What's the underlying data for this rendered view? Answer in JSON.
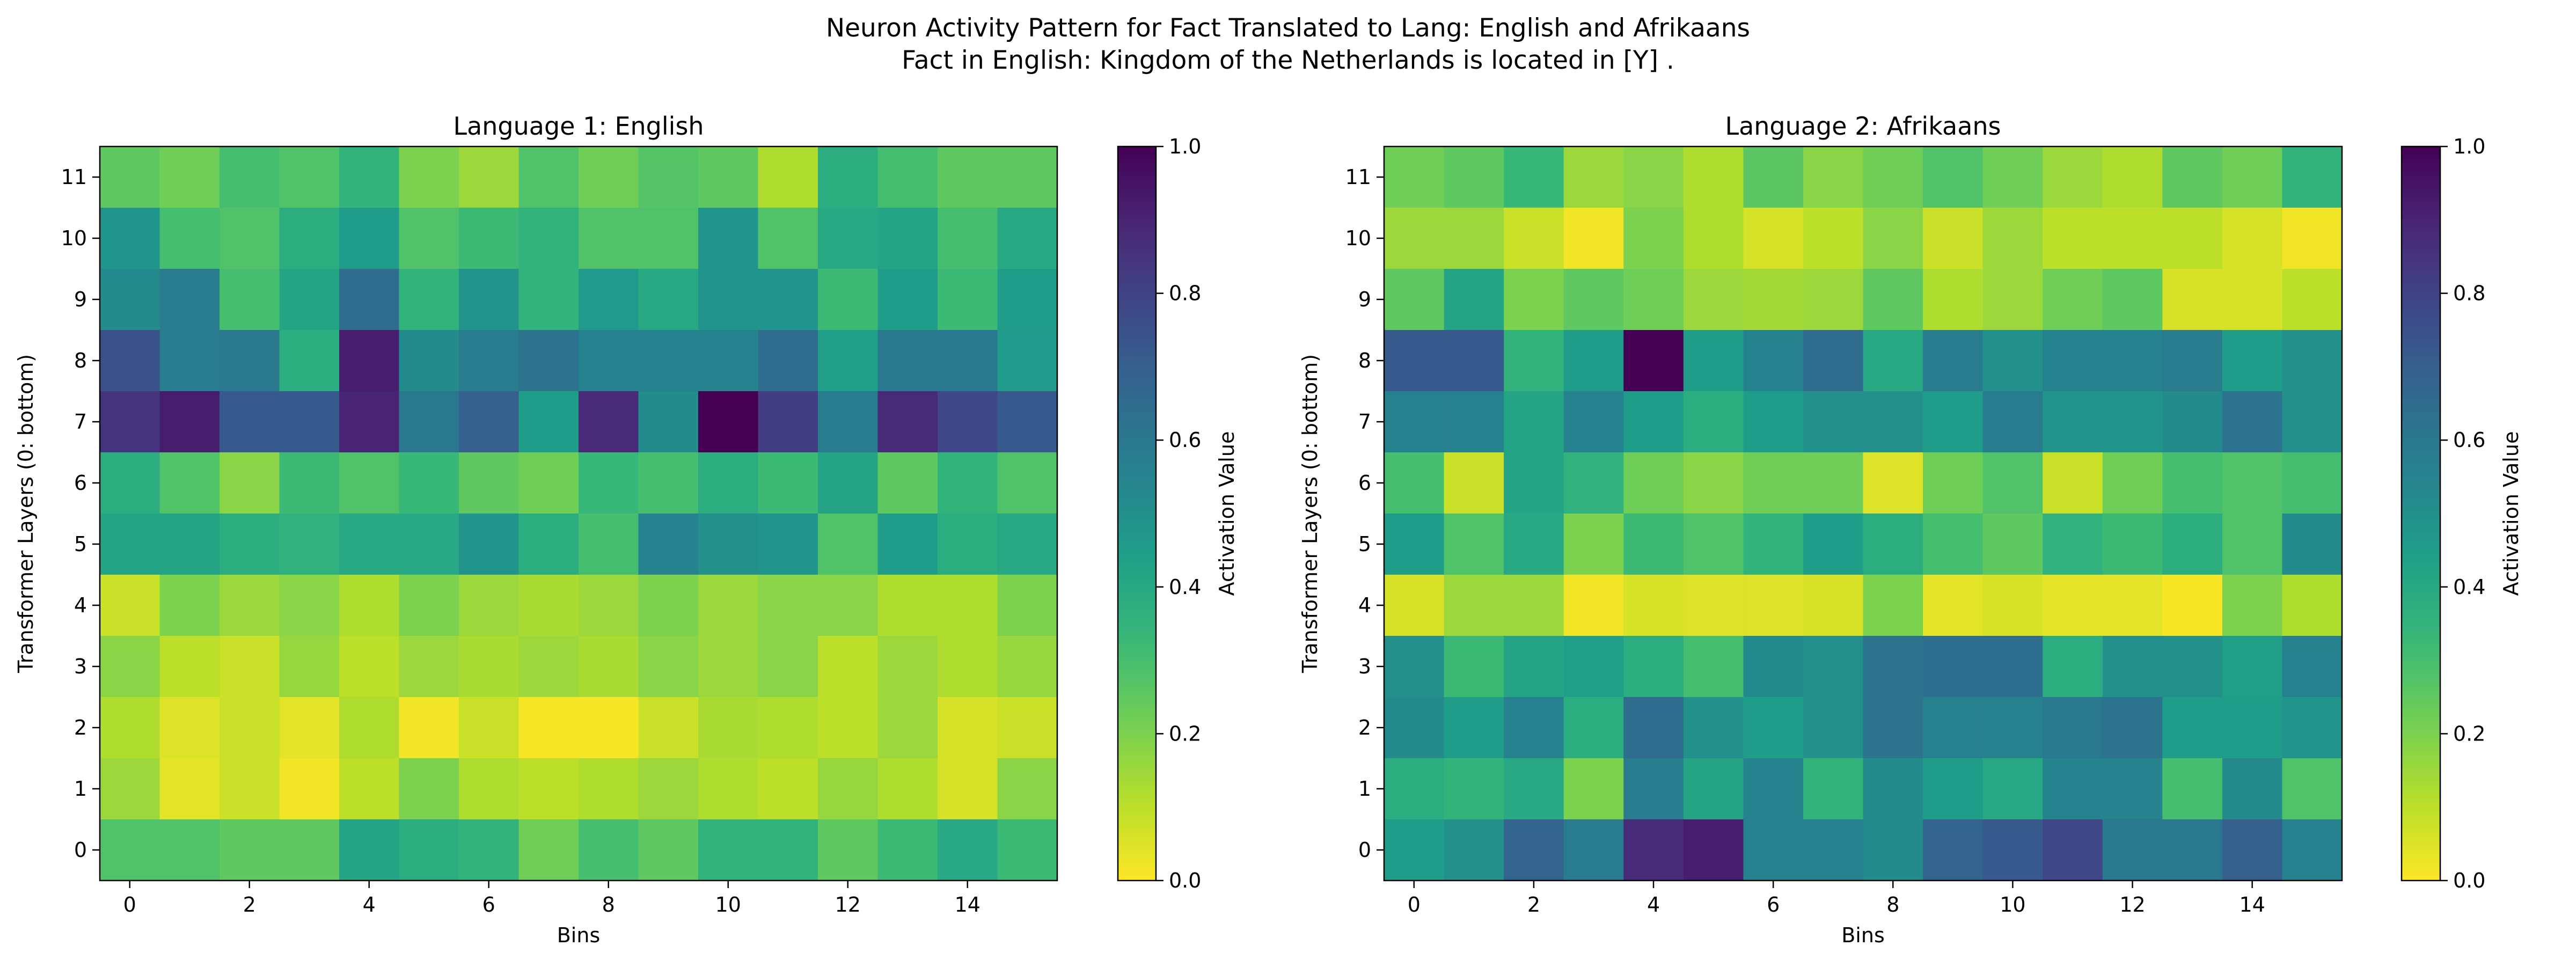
{
  "figure": {
    "title_line1": "Neuron Activity Pattern for Fact Translated to Lang: English and Afrikaans",
    "title_line2": "Fact in English: Kingdom of the Netherlands is located in [Y] ."
  },
  "colors": {
    "colormap_viridis_r": [
      "#fde725",
      "#b5de2b",
      "#6ece58",
      "#35b779",
      "#1f9e89",
      "#26828e",
      "#31688e",
      "#3e4989",
      "#482878",
      "#440154"
    ]
  },
  "chart_data": [
    {
      "type": "heatmap",
      "title": "Language 1: English",
      "xlabel": "Bins",
      "ylabel": "Transformer Layers (0: bottom)",
      "colorbar_label": "Activation Value",
      "x_ticks": [
        0,
        2,
        4,
        6,
        8,
        10,
        12,
        14
      ],
      "y_ticks": [
        0,
        1,
        2,
        3,
        4,
        5,
        6,
        7,
        8,
        9,
        10,
        11
      ],
      "colorbar_ticks": [
        0.0,
        0.2,
        0.4,
        0.6,
        0.8,
        1.0
      ],
      "x_range": [
        0,
        15
      ],
      "y_range": [
        0,
        11
      ],
      "value_range": [
        0,
        1
      ],
      "colormap": "viridis_r",
      "rows_top_to_bottom": [
        [
          0.25,
          0.22,
          0.3,
          0.28,
          0.35,
          0.2,
          0.15,
          0.28,
          0.22,
          0.27,
          0.25,
          0.12,
          0.38,
          0.3,
          0.25,
          0.25
        ],
        [
          0.48,
          0.3,
          0.28,
          0.38,
          0.45,
          0.28,
          0.32,
          0.35,
          0.28,
          0.28,
          0.48,
          0.28,
          0.4,
          0.42,
          0.3,
          0.4
        ],
        [
          0.52,
          0.58,
          0.3,
          0.42,
          0.65,
          0.35,
          0.48,
          0.35,
          0.46,
          0.4,
          0.48,
          0.48,
          0.32,
          0.45,
          0.32,
          0.45
        ],
        [
          0.75,
          0.58,
          0.6,
          0.38,
          0.92,
          0.52,
          0.58,
          0.62,
          0.56,
          0.56,
          0.55,
          0.65,
          0.44,
          0.6,
          0.6,
          0.46
        ],
        [
          0.85,
          0.92,
          0.72,
          0.72,
          0.9,
          0.6,
          0.7,
          0.45,
          0.88,
          0.52,
          1.0,
          0.82,
          0.58,
          0.88,
          0.78,
          0.72
        ],
        [
          0.38,
          0.28,
          0.18,
          0.32,
          0.28,
          0.33,
          0.25,
          0.22,
          0.33,
          0.3,
          0.38,
          0.32,
          0.42,
          0.25,
          0.35,
          0.28
        ],
        [
          0.42,
          0.42,
          0.38,
          0.36,
          0.4,
          0.4,
          0.48,
          0.38,
          0.3,
          0.55,
          0.5,
          0.48,
          0.28,
          0.45,
          0.38,
          0.4
        ],
        [
          0.08,
          0.2,
          0.15,
          0.18,
          0.12,
          0.2,
          0.15,
          0.13,
          0.15,
          0.2,
          0.15,
          0.18,
          0.18,
          0.12,
          0.12,
          0.2
        ],
        [
          0.18,
          0.1,
          0.08,
          0.16,
          0.1,
          0.15,
          0.13,
          0.15,
          0.13,
          0.18,
          0.15,
          0.18,
          0.1,
          0.15,
          0.12,
          0.16
        ],
        [
          0.12,
          0.05,
          0.08,
          0.04,
          0.12,
          0.02,
          0.08,
          0.01,
          0.01,
          0.08,
          0.13,
          0.12,
          0.1,
          0.15,
          0.06,
          0.08
        ],
        [
          0.15,
          0.04,
          0.08,
          0.02,
          0.1,
          0.2,
          0.12,
          0.1,
          0.12,
          0.15,
          0.12,
          0.1,
          0.16,
          0.12,
          0.06,
          0.18
        ],
        [
          0.28,
          0.28,
          0.25,
          0.25,
          0.42,
          0.38,
          0.35,
          0.22,
          0.3,
          0.25,
          0.35,
          0.35,
          0.25,
          0.32,
          0.4,
          0.32
        ]
      ]
    },
    {
      "type": "heatmap",
      "title": "Language 2: Afrikaans",
      "xlabel": "Bins",
      "ylabel": "Transformer Layers (0: bottom)",
      "colorbar_label": "Activation Value",
      "x_ticks": [
        0,
        2,
        4,
        6,
        8,
        10,
        12,
        14
      ],
      "y_ticks": [
        0,
        1,
        2,
        3,
        4,
        5,
        6,
        7,
        8,
        9,
        10,
        11
      ],
      "colorbar_ticks": [
        0.0,
        0.2,
        0.4,
        0.6,
        0.8,
        1.0
      ],
      "x_range": [
        0,
        15
      ],
      "y_range": [
        0,
        11
      ],
      "value_range": [
        0,
        1
      ],
      "colormap": "viridis_r",
      "rows_top_to_bottom": [
        [
          0.22,
          0.25,
          0.33,
          0.15,
          0.18,
          0.12,
          0.26,
          0.18,
          0.22,
          0.28,
          0.22,
          0.15,
          0.12,
          0.25,
          0.22,
          0.35
        ],
        [
          0.15,
          0.15,
          0.08,
          0.02,
          0.2,
          0.12,
          0.06,
          0.1,
          0.18,
          0.08,
          0.15,
          0.1,
          0.1,
          0.1,
          0.06,
          0.02
        ],
        [
          0.25,
          0.42,
          0.2,
          0.25,
          0.22,
          0.15,
          0.14,
          0.15,
          0.25,
          0.12,
          0.15,
          0.22,
          0.25,
          0.06,
          0.06,
          0.1
        ],
        [
          0.72,
          0.72,
          0.35,
          0.45,
          1.0,
          0.45,
          0.56,
          0.65,
          0.4,
          0.58,
          0.5,
          0.56,
          0.56,
          0.58,
          0.45,
          0.5
        ],
        [
          0.56,
          0.56,
          0.42,
          0.56,
          0.45,
          0.38,
          0.45,
          0.5,
          0.5,
          0.45,
          0.58,
          0.48,
          0.48,
          0.52,
          0.62,
          0.5
        ],
        [
          0.3,
          0.08,
          0.42,
          0.36,
          0.22,
          0.18,
          0.22,
          0.22,
          0.05,
          0.22,
          0.28,
          0.08,
          0.22,
          0.3,
          0.28,
          0.3
        ],
        [
          0.45,
          0.28,
          0.4,
          0.2,
          0.32,
          0.28,
          0.35,
          0.45,
          0.38,
          0.3,
          0.25,
          0.36,
          0.32,
          0.38,
          0.28,
          0.52
        ],
        [
          0.06,
          0.15,
          0.15,
          0.02,
          0.06,
          0.05,
          0.05,
          0.06,
          0.2,
          0.04,
          0.06,
          0.04,
          0.04,
          0.01,
          0.2,
          0.12
        ],
        [
          0.5,
          0.32,
          0.42,
          0.44,
          0.38,
          0.3,
          0.52,
          0.5,
          0.62,
          0.64,
          0.64,
          0.38,
          0.5,
          0.5,
          0.44,
          0.56
        ],
        [
          0.52,
          0.45,
          0.56,
          0.38,
          0.65,
          0.5,
          0.45,
          0.5,
          0.62,
          0.56,
          0.56,
          0.6,
          0.62,
          0.45,
          0.45,
          0.48
        ],
        [
          0.38,
          0.35,
          0.4,
          0.2,
          0.58,
          0.42,
          0.55,
          0.35,
          0.52,
          0.45,
          0.4,
          0.55,
          0.55,
          0.3,
          0.52,
          0.28
        ],
        [
          0.45,
          0.5,
          0.68,
          0.58,
          0.88,
          0.92,
          0.56,
          0.56,
          0.52,
          0.68,
          0.72,
          0.78,
          0.6,
          0.6,
          0.7,
          0.56
        ]
      ]
    }
  ]
}
